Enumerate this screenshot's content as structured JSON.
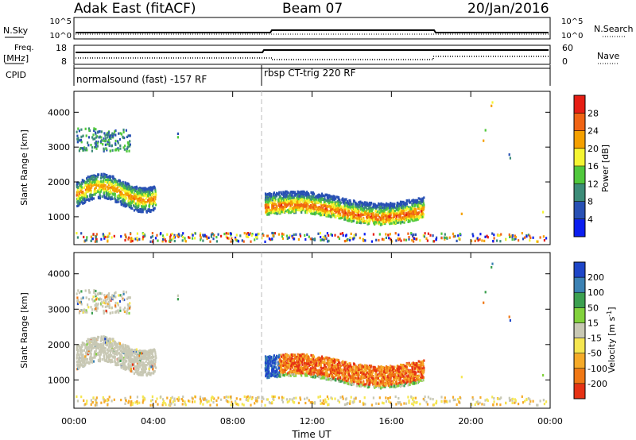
{
  "header": {
    "station": "Adak East (fitACF)",
    "beam": "Beam 07",
    "date": "20/Jan/2016"
  },
  "top_panels": {
    "nsky_label": "N.Sky",
    "nsearch_label": "N.Search",
    "nsky_ticks": [
      "10^5",
      "10^0"
    ],
    "nsearch_ticks": [
      "10^5",
      "10^0"
    ],
    "freq_label_1": "Freq.",
    "freq_label_2": "[MHz]",
    "freq_ticks": [
      "18",
      "8"
    ],
    "nave_label": "Nave",
    "nave_ticks": [
      "60",
      "0"
    ],
    "cpid_label": "CPID",
    "cpid_segments": [
      {
        "label": "normalsound (fast) -157 RF",
        "start_h": 0,
        "end_h": 9.5
      },
      {
        "label": "rbsp CT-trig 220 RF",
        "start_h": 9.5,
        "end_h": 24
      }
    ]
  },
  "power_colorbar": {
    "title": "Power [dB]",
    "ticks": [
      "4",
      "8",
      "12",
      "16",
      "20",
      "24",
      "28"
    ],
    "colors": [
      "#0b1ef0",
      "#2850b4",
      "#3c8c78",
      "#50c83c",
      "#f5f532",
      "#f5a000",
      "#f06414",
      "#e61e14"
    ]
  },
  "velocity_colorbar": {
    "title": "Velocity [m s^-1]",
    "ticks": [
      "200",
      "100",
      "50",
      "15",
      "-15",
      "-50",
      "-100",
      "-200"
    ],
    "colors": [
      "#1e46c8",
      "#3c82b4",
      "#3ca050",
      "#82d23c",
      "#c8c8b4",
      "#f5e650",
      "#f5aa28",
      "#f07814",
      "#e63214"
    ]
  },
  "chart_data": [
    {
      "type": "heatmap",
      "title": "Power",
      "xlabel": "",
      "ylabel": "Slant Range [km]",
      "xlim": [
        0,
        24
      ],
      "ylim": [
        200,
        4600
      ],
      "yticks": [
        "1000",
        "2000",
        "3000",
        "4000"
      ],
      "regions": [
        {
          "t0": 0.1,
          "t1": 4.1,
          "r0": 1200,
          "r1": 2100,
          "level": "medium-strong"
        },
        {
          "t0": 0.1,
          "t1": 2.8,
          "r0": 2800,
          "r1": 3500,
          "level": "weak"
        },
        {
          "t0": 9.6,
          "t1": 17.6,
          "r0": 800,
          "r1": 1600,
          "level": "strong"
        }
      ]
    },
    {
      "type": "heatmap",
      "title": "Velocity",
      "xlabel": "Time UT",
      "ylabel": "Slant Range [km]",
      "xlim": [
        0,
        24
      ],
      "ylim": [
        200,
        4600
      ],
      "xticks": [
        "00:00",
        "04:00",
        "08:00",
        "12:00",
        "16:00",
        "20:00",
        "00:00"
      ],
      "yticks": [
        "1000",
        "2000",
        "3000",
        "4000"
      ],
      "regions": [
        {
          "t0": 0.1,
          "t1": 4.1,
          "r0": 1200,
          "r1": 2100,
          "velocity": "ground scatter"
        },
        {
          "t0": 9.6,
          "t1": 17.6,
          "r0": 800,
          "r1": 1600,
          "velocity": "negative (-100 to -200)"
        }
      ]
    }
  ]
}
